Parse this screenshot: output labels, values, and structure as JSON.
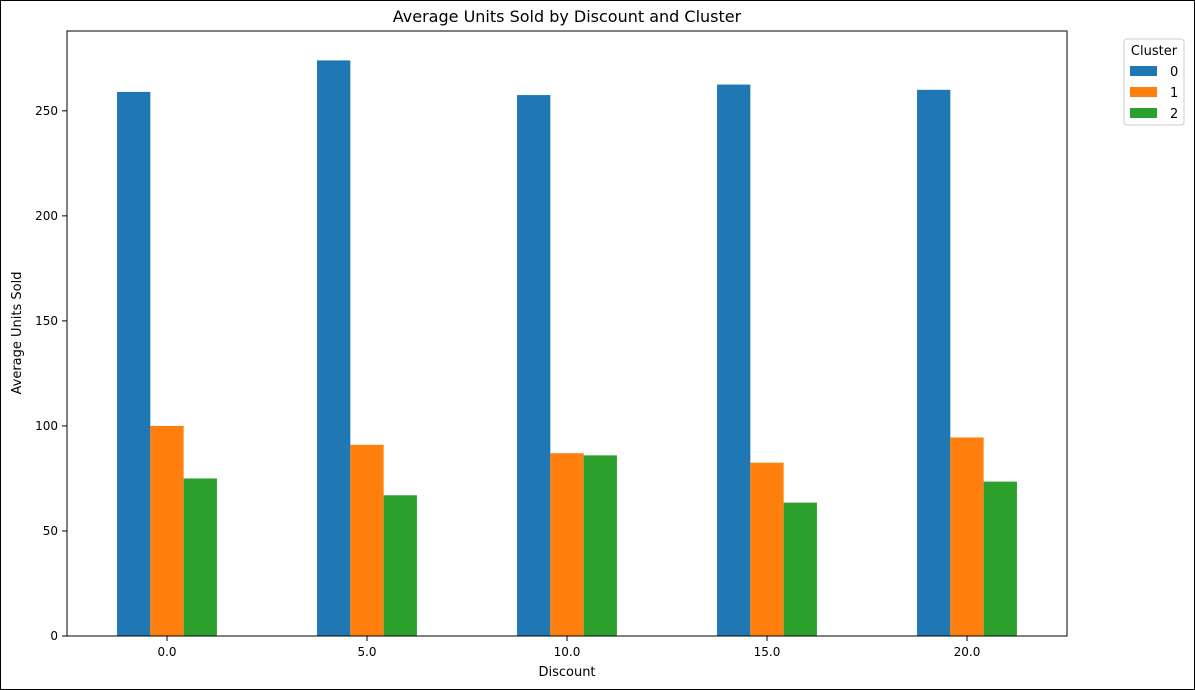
{
  "chart_data": {
    "type": "bar",
    "title": "Average Units Sold by Discount and Cluster",
    "xlabel": "Discount",
    "ylabel": "Average Units Sold",
    "categories": [
      "0.0",
      "5.0",
      "10.0",
      "15.0",
      "20.0"
    ],
    "series": [
      {
        "name": "0",
        "color": "#1f77b4",
        "values": [
          259,
          274,
          257.5,
          262.5,
          260
        ]
      },
      {
        "name": "1",
        "color": "#ff7f0e",
        "values": [
          100,
          91,
          87,
          82.5,
          94.5
        ]
      },
      {
        "name": "2",
        "color": "#2ca02c",
        "values": [
          75,
          67,
          86,
          63.5,
          73.5
        ]
      }
    ],
    "ylim": [
      0,
      288
    ],
    "yticks": [
      0,
      50,
      100,
      150,
      200,
      250
    ],
    "grid": false,
    "legend": {
      "title": "Cluster",
      "placement": "outside-top-right"
    }
  }
}
